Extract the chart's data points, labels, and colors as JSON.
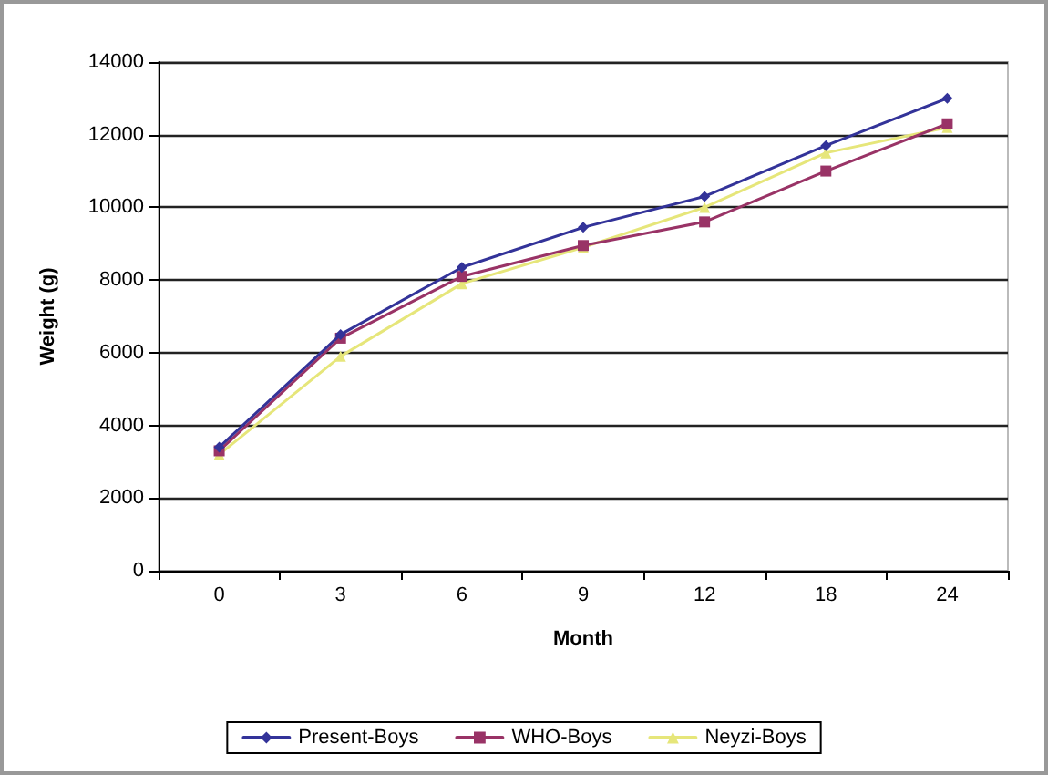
{
  "chart_data": {
    "type": "line",
    "xlabel": "Month",
    "ylabel": "Weight (g)",
    "categories": [
      "0",
      "3",
      "6",
      "9",
      "12",
      "18",
      "24"
    ],
    "series": [
      {
        "name": "Present-Boys",
        "color": "#333399",
        "marker": "diamond",
        "values": [
          3400,
          6500,
          8350,
          9450,
          10300,
          11700,
          13000
        ]
      },
      {
        "name": "WHO-Boys",
        "color": "#993366",
        "marker": "square",
        "values": [
          3300,
          6400,
          8100,
          8950,
          9600,
          11000,
          12300
        ]
      },
      {
        "name": "Neyzi-Boys",
        "color": "#e6e67a",
        "marker": "triangle",
        "values": [
          3200,
          5900,
          7900,
          8900,
          10000,
          11500,
          12200
        ]
      }
    ],
    "ylim": [
      0,
      14000
    ],
    "yticks": [
      0,
      2000,
      4000,
      6000,
      8000,
      10000,
      12000,
      14000
    ],
    "grid": "y",
    "legend": "bottom",
    "line_style": "solid"
  }
}
